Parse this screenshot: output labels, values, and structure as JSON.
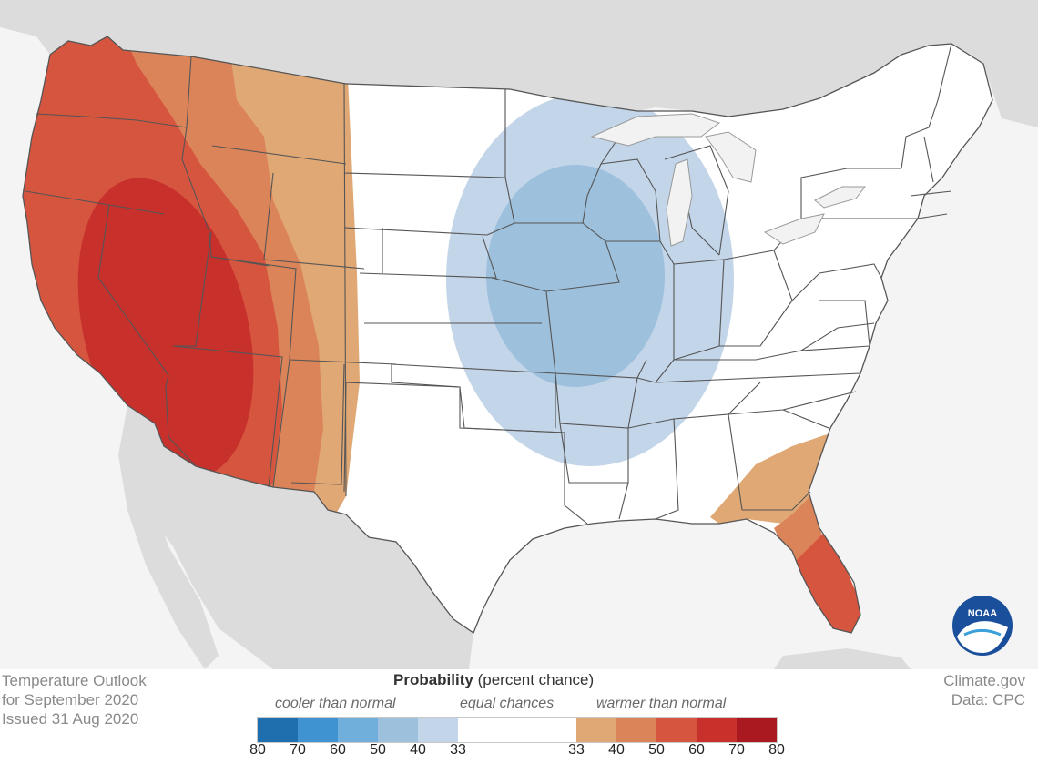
{
  "title": {
    "line1": "Temperature Outlook",
    "line2": "for September 2020",
    "line3": "Issued 31 Aug 2020"
  },
  "credit": {
    "site": "Climate.gov",
    "data": "Data: CPC"
  },
  "legend": {
    "title_bold": "Probability",
    "title_rest": " (percent chance)",
    "cooler_label": "cooler than normal",
    "equal_label": "equal chances",
    "warmer_label": "warmer than normal",
    "ticks": [
      "80",
      "70",
      "60",
      "50",
      "40",
      "33",
      "33",
      "40",
      "50",
      "60",
      "70",
      "80"
    ],
    "cool_colors": [
      "#1f6fae",
      "#3f93d0",
      "#70aedb",
      "#9dc0dd",
      "#c3d5e8"
    ],
    "neutral_color": "#ffffff",
    "warm_colors": [
      "#e0a874",
      "#dc8459",
      "#d6553f",
      "#c8302c",
      "#a9191f"
    ]
  },
  "colors": {
    "land": "#ffffff",
    "water": "#f2f2f2",
    "foreign_land": "#dedede",
    "state_border": "#555555",
    "warm_33_40": "#e0a874",
    "warm_40_50": "#dc8459",
    "warm_50_60": "#d6553f",
    "warm_60_70": "#c8302c",
    "cool_33_40": "#c3d5e8",
    "cool_40_50": "#9dc0dd"
  },
  "logo": {
    "text": "NOAA"
  }
}
